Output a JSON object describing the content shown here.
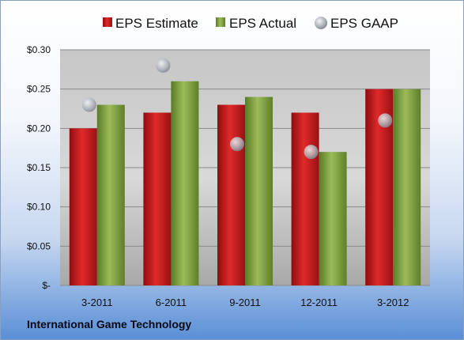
{
  "company": "International Game Technology",
  "colors": {
    "estimate": "#c0141b",
    "actual": "#7a9a3a",
    "gaap": "#b7bcc4"
  },
  "chart_data": {
    "type": "bar",
    "categories": [
      "3-2011",
      "6-2011",
      "9-2011",
      "12-2011",
      "3-2012"
    ],
    "series": [
      {
        "name": "EPS Estimate",
        "values": [
          0.2,
          0.22,
          0.23,
          0.22,
          0.25
        ]
      },
      {
        "name": "EPS Actual",
        "values": [
          0.23,
          0.26,
          0.24,
          0.17,
          0.25
        ]
      },
      {
        "name": "EPS GAAP",
        "type": "scatter",
        "values": [
          0.23,
          0.28,
          0.18,
          0.17,
          0.21
        ]
      }
    ],
    "yticks": [
      "$-",
      "$0.05",
      "$0.10",
      "$0.15",
      "$0.20",
      "$0.25",
      "$0.30"
    ],
    "ylim": [
      0,
      0.3
    ],
    "grid": true,
    "legend": "top"
  }
}
